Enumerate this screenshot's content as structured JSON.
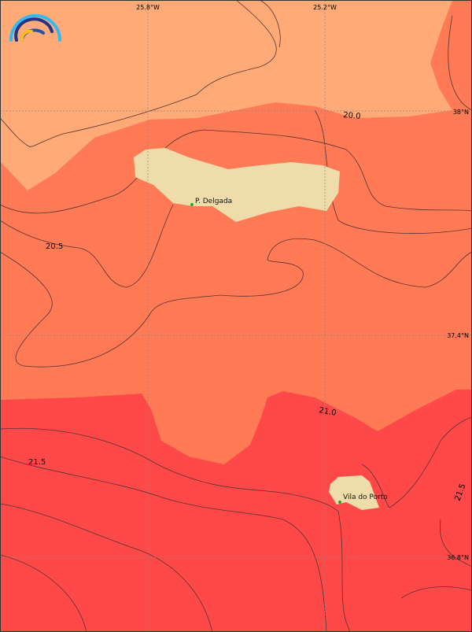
{
  "map": {
    "colors": {
      "band_20_0": "#FFAA77",
      "band_20_5": "#FF7A55",
      "band_21_0": "#FF4848",
      "land": "#EEDDAA",
      "contour": "#553333",
      "grid": "#888888",
      "place_marker": "#22AA22"
    },
    "longitude_labels": [
      "25.8°W",
      "25.2°W"
    ],
    "latitude_labels": [
      "38°N",
      "37.4°N",
      "36.8°N"
    ],
    "contour_labels": [
      "20.0",
      "20.5",
      "21.0",
      "21.5",
      "21.5"
    ],
    "places": [
      "P. Delgada",
      "Vila do Porto"
    ],
    "logo_icon": "rainbow-arcs-logo-icon"
  }
}
